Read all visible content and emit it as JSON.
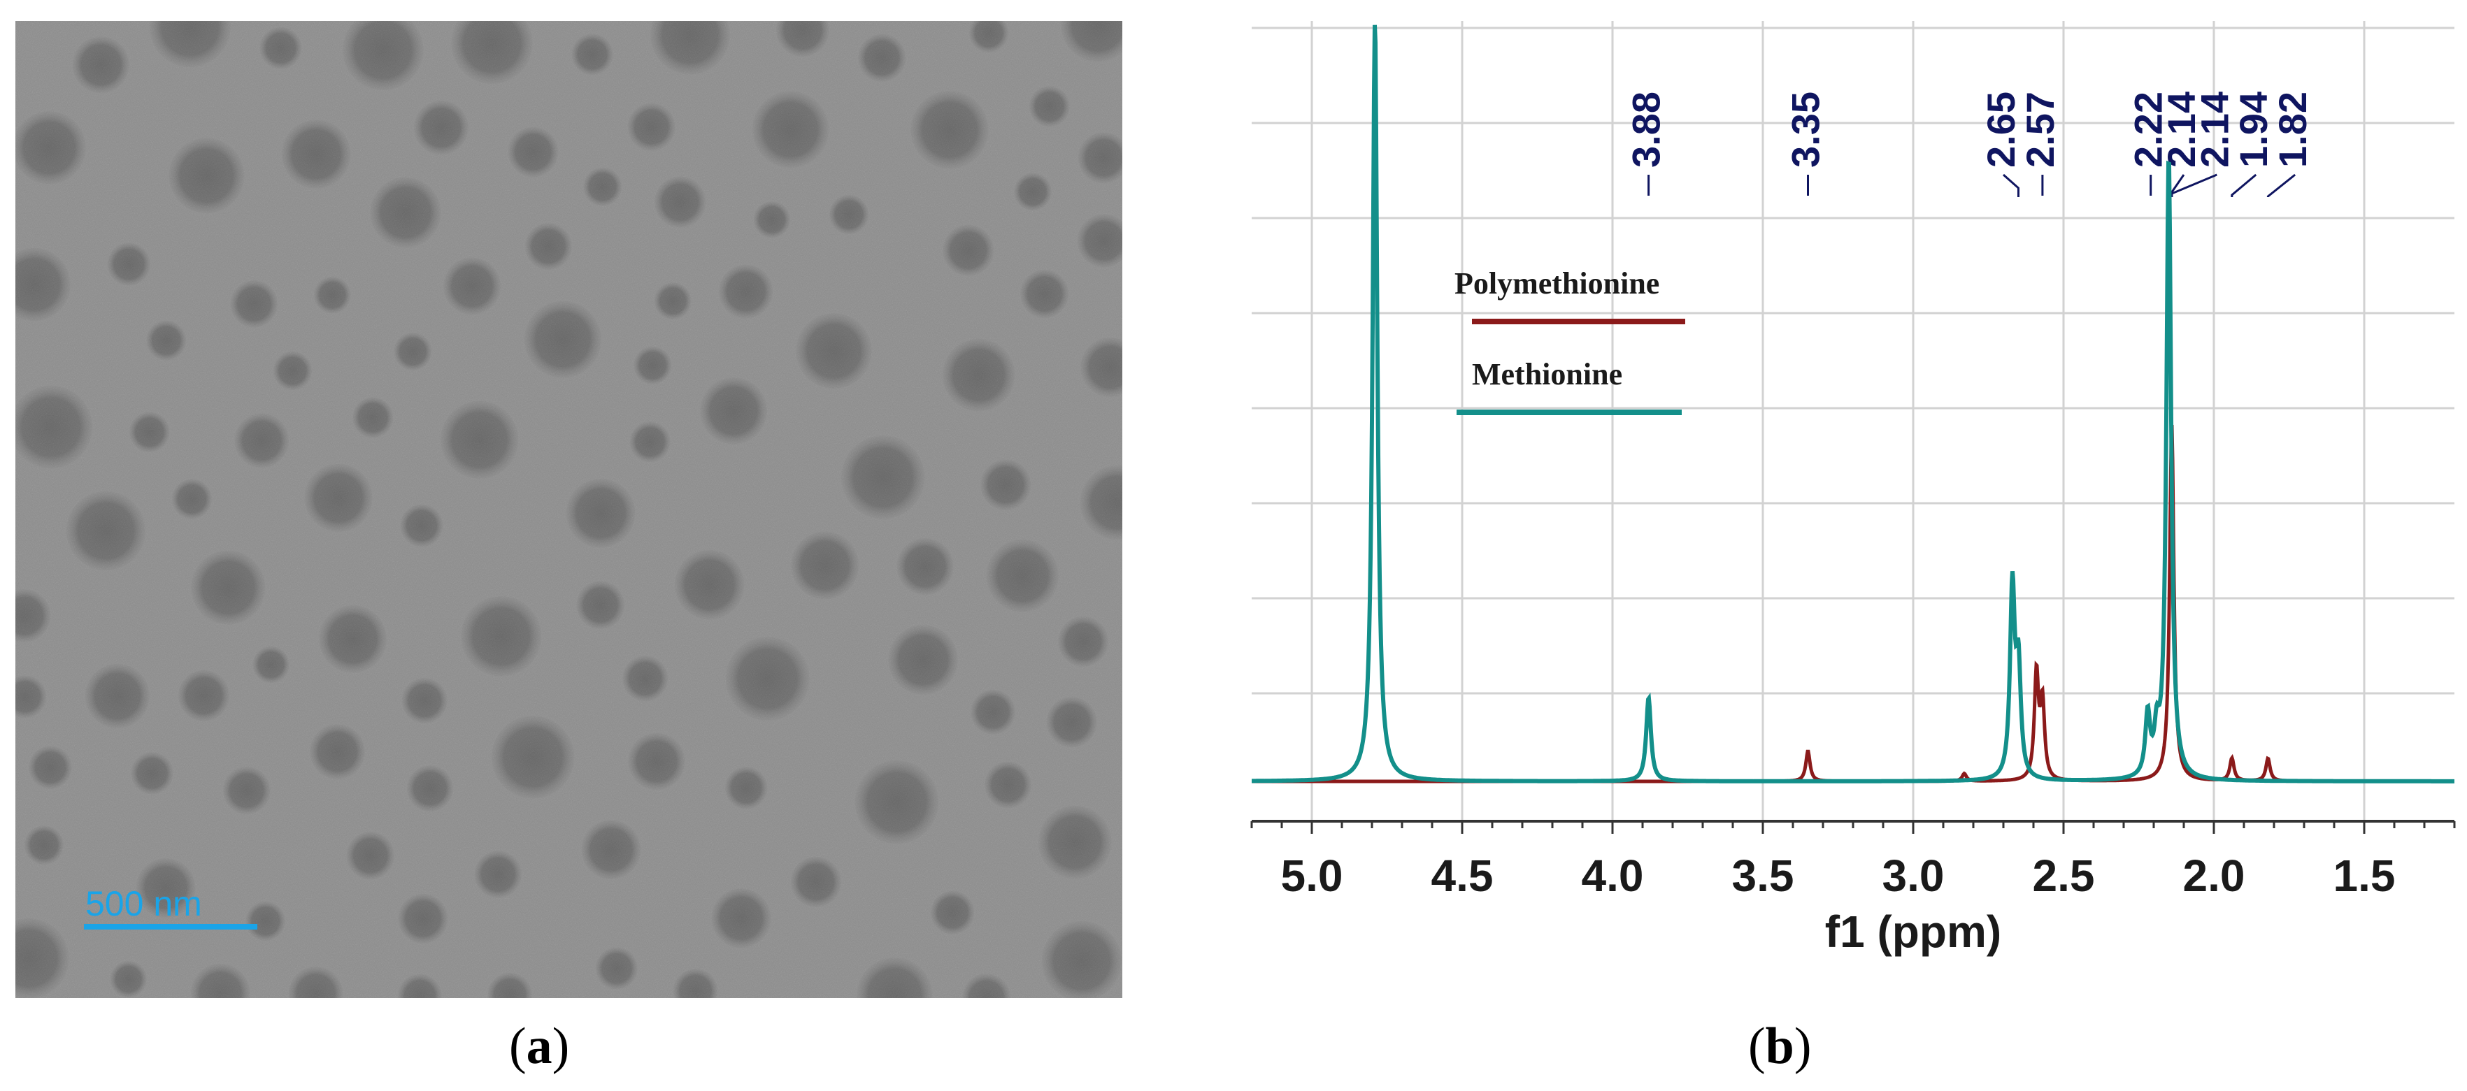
{
  "panels": {
    "a": {
      "label_open": "(",
      "label_letter": "a",
      "label_close": ")",
      "image": {
        "type": "TEM micrograph",
        "background_color": "#8d8d8d",
        "particle_color": "#3f3f3f",
        "scale_bar": {
          "text": "500 nm",
          "color": "#1aa4e8"
        }
      }
    },
    "b": {
      "label_open": "(",
      "label_letter": "b",
      "label_close": ")"
    }
  },
  "chart_data": {
    "type": "line",
    "title": "",
    "xlabel": "f1 (ppm)",
    "ylabel": "",
    "xlim": [
      5.2,
      1.2
    ],
    "x_reversed": true,
    "x_ticks": [
      5.0,
      4.5,
      4.0,
      3.5,
      3.0,
      2.5,
      2.0,
      1.5
    ],
    "x_tick_labels": [
      "5.0",
      "4.5",
      "4.0",
      "3.5",
      "3.0",
      "2.5",
      "2.0",
      "1.5"
    ],
    "ylim": [
      0,
      1.0
    ],
    "grid": true,
    "legend": {
      "placement": "upper-left",
      "entries": [
        {
          "label": "Polymethionine",
          "color": "#8b1a1a"
        },
        {
          "label": "Methionine",
          "color": "#138f8a"
        }
      ]
    },
    "peak_labels": [
      "3.88",
      "3.35",
      "2.65",
      "2.57",
      "2.22",
      "2.14",
      "2.14",
      "1.94",
      "1.82"
    ],
    "peak_label_positions_ppm": [
      3.88,
      3.35,
      2.65,
      2.57,
      2.22,
      2.14,
      2.14,
      1.94,
      1.82
    ],
    "series": [
      {
        "name": "Methionine",
        "color": "#138f8a",
        "peaks": [
          {
            "ppm": 4.79,
            "height": 1.0
          },
          {
            "ppm": 3.88,
            "height": 0.11
          },
          {
            "ppm": 2.67,
            "height": 0.25
          },
          {
            "ppm": 2.65,
            "height": 0.14
          },
          {
            "ppm": 2.22,
            "height": 0.08
          },
          {
            "ppm": 2.19,
            "height": 0.05
          },
          {
            "ppm": 2.15,
            "height": 0.82
          }
        ]
      },
      {
        "name": "Polymethionine",
        "color": "#8b1a1a",
        "peaks": [
          {
            "ppm": 3.35,
            "height": 0.04
          },
          {
            "ppm": 2.83,
            "height": 0.01
          },
          {
            "ppm": 2.59,
            "height": 0.14
          },
          {
            "ppm": 2.57,
            "height": 0.1
          },
          {
            "ppm": 2.14,
            "height": 0.47
          },
          {
            "ppm": 1.94,
            "height": 0.03
          },
          {
            "ppm": 1.82,
            "height": 0.03
          }
        ]
      }
    ]
  }
}
